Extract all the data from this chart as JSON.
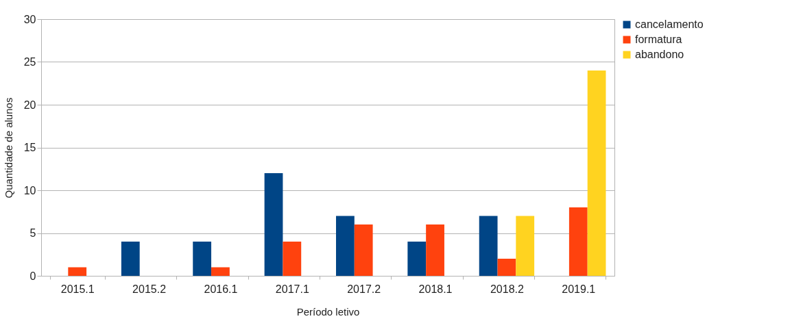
{
  "chart_data": {
    "type": "bar",
    "xlabel": "Período letivo",
    "ylabel": "Quantidade de alunos",
    "categories": [
      "2015.1",
      "2015.2",
      "2016.1",
      "2017.1",
      "2017.2",
      "2018.1",
      "2018.2",
      "2019.1"
    ],
    "series": [
      {
        "name": "cancelamento",
        "color": "#004586",
        "values": [
          0,
          4,
          4,
          12,
          7,
          4,
          7,
          0
        ]
      },
      {
        "name": "formatura",
        "color": "#ff420e",
        "values": [
          1,
          0,
          1,
          4,
          6,
          6,
          2,
          8
        ]
      },
      {
        "name": "abandono",
        "color": "#ffd320",
        "values": [
          0,
          0,
          0,
          0,
          0,
          0,
          7,
          24
        ]
      }
    ],
    "ylim": [
      0,
      30
    ],
    "yticks": [
      0,
      5,
      10,
      15,
      20,
      25,
      30
    ],
    "grid": "y",
    "legend": "right"
  }
}
